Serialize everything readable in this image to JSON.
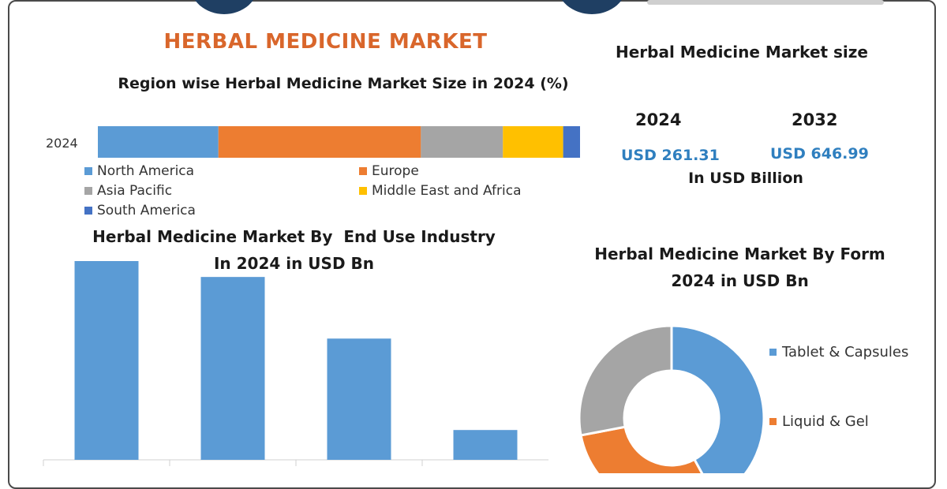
{
  "header": {
    "title": "HERBAL MEDICINE MARKET"
  },
  "region_chart": {
    "subtitle": "Region wise Herbal Medicine Market Size in 2024 (%)"
  },
  "market_size": {
    "title": "Herbal Medicine Market size",
    "year_1": "2024",
    "value_1": "USD 261.31",
    "year_2": "2032",
    "value_2": "USD 646.99",
    "unit": "In USD Billion"
  },
  "end_use": {
    "title_line1": "Herbal Medicine Market By  End Use Industry",
    "title_line2": "In 2024 in USD Bn"
  },
  "form": {
    "title_line1": "Herbal Medicine Market By Form",
    "title_line2": "2024 in USD Bn"
  },
  "chart_data": [
    {
      "type": "bar",
      "orientation": "horizontal-stacked",
      "title": "Region wise Herbal Medicine Market Size in 2024 (%)",
      "categories": [
        "2024"
      ],
      "series": [
        {
          "name": "North America",
          "values": [
            25
          ],
          "color": "#5b9bd5"
        },
        {
          "name": "Europe",
          "values": [
            42
          ],
          "color": "#ed7d31"
        },
        {
          "name": "Asia Pacific",
          "values": [
            17
          ],
          "color": "#a5a5a5"
        },
        {
          "name": "Middle East and Africa",
          "values": [
            12.5
          ],
          "color": "#ffc000"
        },
        {
          "name": "South America",
          "values": [
            3.5
          ],
          "color": "#4472c4"
        }
      ],
      "xlim": [
        0,
        100
      ],
      "legend_position": "bottom"
    },
    {
      "type": "bar",
      "title": "Herbal Medicine Market By  End Use Industry In 2024 in USD Bn",
      "categories": [
        "",
        "",
        "",
        ""
      ],
      "values": [
        100,
        92,
        61,
        15
      ],
      "color": "#5b9bd5",
      "grid": false
    },
    {
      "type": "pie",
      "subtype": "donut",
      "title": "Herbal Medicine Market By Form 2024 in USD Bn",
      "series": [
        {
          "name": "Tablet & Capsules",
          "value": 42,
          "color": "#5b9bd5"
        },
        {
          "name": "Liquid & Gel",
          "value": 30,
          "color": "#ed7d31"
        },
        {
          "name": "",
          "value": 28,
          "color": "#a5a5a5"
        }
      ],
      "legend_position": "right"
    }
  ]
}
